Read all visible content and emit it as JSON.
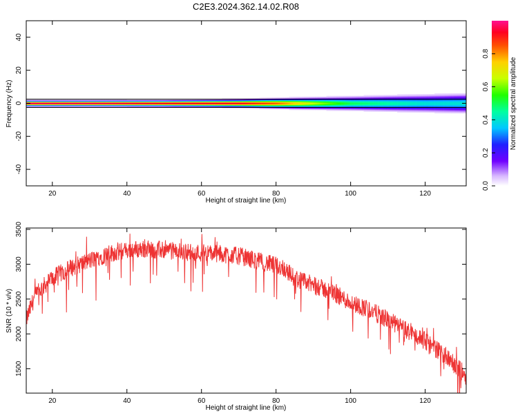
{
  "figure": {
    "title": "C2E3.2024.362.14.02.R08"
  },
  "chart_data": [
    {
      "type": "heatmap",
      "xlabel": "Height of straight line (km)",
      "ylabel": "Frequency (Hz)",
      "xlim": [
        13,
        131
      ],
      "ylim": [
        -50,
        50
      ],
      "x_ticks": [
        20,
        40,
        60,
        80,
        100,
        120
      ],
      "y_ticks": [
        -40,
        -20,
        0,
        20,
        40
      ],
      "colorbar": {
        "label": "Normalized spectral amplitude",
        "range": [
          0,
          1
        ],
        "ticks": [
          0.0,
          0.2,
          0.4,
          0.6,
          0.8
        ]
      },
      "band": {
        "x": [
          13,
          30,
          50,
          70,
          80,
          90,
          100,
          110,
          120,
          131
        ],
        "half_width_hz": [
          1.5,
          1.5,
          1.6,
          2.0,
          2.5,
          3.0,
          3.5,
          4.0,
          4.5,
          5.0
        ],
        "peak_amplitude": [
          1.0,
          1.0,
          0.97,
          0.95,
          0.85,
          0.65,
          0.5,
          0.45,
          0.4,
          0.4
        ]
      },
      "lines_hz": [
        -2.5,
        2.5
      ]
    },
    {
      "type": "line",
      "xlabel": "Height of straight line (km)",
      "ylabel": "SNR (10 * v/v)",
      "xlim": [
        13,
        131
      ],
      "ylim": [
        1150,
        3520
      ],
      "x_ticks": [
        20,
        40,
        60,
        80,
        100,
        120
      ],
      "y_ticks": [
        1500,
        2000,
        2500,
        3000,
        3500
      ],
      "color": "#ee3333",
      "series": [
        {
          "x": [
            13,
            15,
            17,
            20,
            25,
            30,
            35,
            40,
            45,
            50,
            55,
            60,
            65,
            70,
            75,
            80,
            82,
            85,
            90,
            95,
            100,
            105,
            110,
            115,
            120,
            125,
            128,
            131
          ],
          "values": [
            2200,
            2500,
            2650,
            2800,
            2950,
            3050,
            3150,
            3200,
            3220,
            3200,
            3180,
            3160,
            3150,
            3120,
            3050,
            2980,
            2950,
            2800,
            2700,
            2600,
            2450,
            2350,
            2200,
            2050,
            1900,
            1700,
            1550,
            1400
          ]
        }
      ]
    }
  ]
}
